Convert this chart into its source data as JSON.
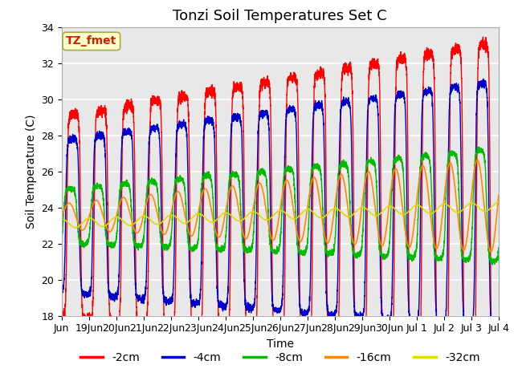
{
  "title": "Tonzi Soil Temperatures Set C",
  "xlabel": "Time",
  "ylabel": "Soil Temperature (C)",
  "ylim": [
    18,
    34
  ],
  "annotation_text": "TZ_fmet",
  "annotation_color": "#cc2200",
  "annotation_bg": "#ffffcc",
  "annotation_border": "#aaaa44",
  "series_colors": [
    "#ff0000",
    "#0000cc",
    "#00bb00",
    "#ff8800",
    "#dddd00"
  ],
  "series_labels": [
    "-2cm",
    "-4cm",
    "-8cm",
    "-16cm",
    "-32cm"
  ],
  "bg_color": "#e8e8e8",
  "grid_color": "#ffffff",
  "title_fontsize": 13,
  "label_fontsize": 10,
  "tick_fontsize": 9,
  "legend_fontsize": 10
}
